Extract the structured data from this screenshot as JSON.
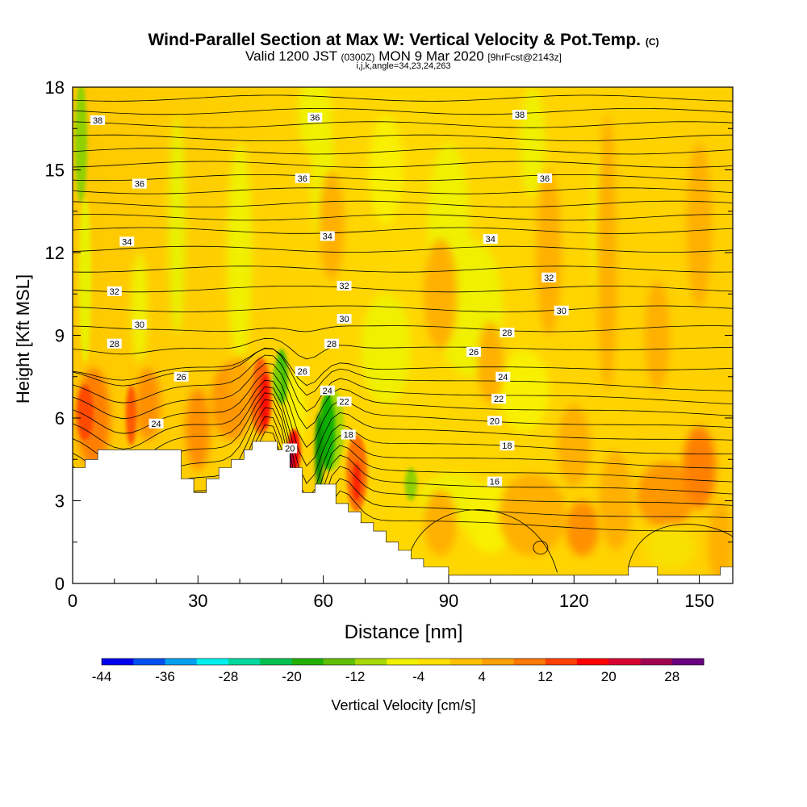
{
  "header": {
    "title": "Wind-Parallel Section at Max W: Vertical Velocity & Pot.Temp.",
    "copyright": "(C)",
    "valid_prefix": "Valid 1200 JST",
    "utc": "(0300Z)",
    "valid_date": "MON 9 Mar 2020",
    "forecast": "[9hrFcst@2143z]",
    "indices": "i,j,k,angle=34,23,24,263"
  },
  "chart_data": {
    "type": "heatmap",
    "title": "Wind-Parallel Section at Max W: Vertical Velocity & Pot.Temp.",
    "xlabel": "Distance [nm]",
    "ylabel": "Height [Kft MSL]",
    "xlim": [
      0,
      158
    ],
    "ylim": [
      0,
      18
    ],
    "xticks": [
      0,
      30,
      60,
      90,
      120,
      150
    ],
    "yticks": [
      0,
      3,
      6,
      9,
      12,
      15,
      18
    ],
    "colorbar": {
      "label": "Vertical Velocity [cm/s]",
      "levels": [
        -44,
        -40,
        -36,
        -32,
        -28,
        -24,
        -20,
        -16,
        -12,
        -8,
        -4,
        0,
        4,
        8,
        12,
        16,
        20,
        24,
        28,
        32
      ],
      "tick_labels": [
        -44,
        -36,
        -28,
        -20,
        -12,
        -4,
        4,
        12,
        20,
        28
      ],
      "colors": [
        "#0000f0",
        "#0050f0",
        "#00a0f0",
        "#00f0f0",
        "#00d8a0",
        "#00c050",
        "#20b000",
        "#60c000",
        "#a8d800",
        "#f0f000",
        "#ffe000",
        "#ffc000",
        "#ffa000",
        "#ff7800",
        "#ff4000",
        "#ff0000",
        "#d80030",
        "#a00050",
        "#6a0080"
      ]
    },
    "terrain": [
      [
        0,
        4.2
      ],
      [
        3,
        4.2
      ],
      [
        3,
        4.5
      ],
      [
        6,
        4.5
      ],
      [
        6,
        4.85
      ],
      [
        26,
        4.85
      ],
      [
        26,
        3.8
      ],
      [
        29,
        3.8
      ],
      [
        29,
        3.3
      ],
      [
        32,
        3.3
      ],
      [
        32,
        3.8
      ],
      [
        35,
        3.8
      ],
      [
        35,
        4.2
      ],
      [
        38,
        4.2
      ],
      [
        38,
        4.5
      ],
      [
        41,
        4.5
      ],
      [
        41,
        4.85
      ],
      [
        43,
        4.85
      ],
      [
        43,
        5.15
      ],
      [
        49,
        5.15
      ],
      [
        49,
        4.85
      ],
      [
        52,
        4.85
      ],
      [
        52,
        4.2
      ],
      [
        55,
        4.2
      ],
      [
        55,
        3.3
      ],
      [
        58,
        3.3
      ],
      [
        58,
        3.6
      ],
      [
        63,
        3.6
      ],
      [
        63,
        2.9
      ],
      [
        66,
        2.9
      ],
      [
        66,
        2.6
      ],
      [
        69,
        2.6
      ],
      [
        69,
        2.2
      ],
      [
        72,
        2.2
      ],
      [
        72,
        1.9
      ],
      [
        75,
        1.9
      ],
      [
        75,
        1.5
      ],
      [
        78,
        1.5
      ],
      [
        78,
        1.2
      ],
      [
        81,
        1.2
      ],
      [
        81,
        0.9
      ],
      [
        84,
        0.9
      ],
      [
        84,
        0.6
      ],
      [
        90,
        0.6
      ],
      [
        90,
        0.3
      ],
      [
        133,
        0.3
      ],
      [
        133,
        0.6
      ],
      [
        140,
        0.6
      ],
      [
        140,
        0.3
      ],
      [
        155,
        0.3
      ],
      [
        155,
        0.6
      ],
      [
        158,
        0.6
      ]
    ],
    "theta_labels": [
      {
        "x": 6,
        "y": 16.8,
        "v": "38"
      },
      {
        "x": 58,
        "y": 16.9,
        "v": "36"
      },
      {
        "x": 107,
        "y": 17.0,
        "v": "38"
      },
      {
        "x": 16,
        "y": 14.5,
        "v": "36"
      },
      {
        "x": 55,
        "y": 14.7,
        "v": "36"
      },
      {
        "x": 113,
        "y": 14.7,
        "v": "36"
      },
      {
        "x": 13,
        "y": 12.4,
        "v": "34"
      },
      {
        "x": 61,
        "y": 12.6,
        "v": "34"
      },
      {
        "x": 100,
        "y": 12.5,
        "v": "34"
      },
      {
        "x": 10,
        "y": 10.6,
        "v": "32"
      },
      {
        "x": 65,
        "y": 10.8,
        "v": "32"
      },
      {
        "x": 114,
        "y": 11.1,
        "v": "32"
      },
      {
        "x": 16,
        "y": 9.4,
        "v": "30"
      },
      {
        "x": 65,
        "y": 9.6,
        "v": "30"
      },
      {
        "x": 117,
        "y": 9.9,
        "v": "30"
      },
      {
        "x": 10,
        "y": 8.7,
        "v": "28"
      },
      {
        "x": 62,
        "y": 8.7,
        "v": "28"
      },
      {
        "x": 104,
        "y": 9.1,
        "v": "28"
      },
      {
        "x": 26,
        "y": 7.5,
        "v": "26"
      },
      {
        "x": 55,
        "y": 7.7,
        "v": "26"
      },
      {
        "x": 96,
        "y": 8.4,
        "v": "26"
      },
      {
        "x": 20,
        "y": 5.8,
        "v": "24"
      },
      {
        "x": 61,
        "y": 7.0,
        "v": "24"
      },
      {
        "x": 103,
        "y": 7.5,
        "v": "24"
      },
      {
        "x": 65,
        "y": 6.6,
        "v": "22"
      },
      {
        "x": 102,
        "y": 6.7,
        "v": "22"
      },
      {
        "x": 52,
        "y": 4.9,
        "v": "20"
      },
      {
        "x": 101,
        "y": 5.9,
        "v": "20"
      },
      {
        "x": 66,
        "y": 5.4,
        "v": "18"
      },
      {
        "x": 104,
        "y": 5.0,
        "v": "18"
      },
      {
        "x": 101,
        "y": 3.7,
        "v": "16"
      }
    ]
  }
}
